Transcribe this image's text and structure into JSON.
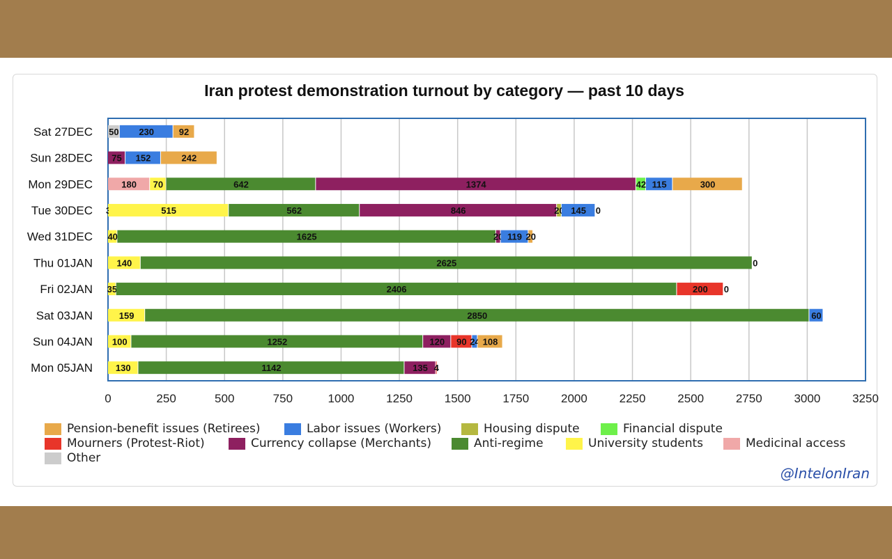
{
  "chart_data": {
    "type": "bar",
    "orientation": "horizontal",
    "stacked": true,
    "title": "Iran protest demonstration turnout by category — past 10 days",
    "xlim": [
      0,
      3250
    ],
    "xticks": [
      0,
      250,
      500,
      750,
      1000,
      1250,
      1500,
      1750,
      2000,
      2250,
      2500,
      2750,
      3000,
      3250
    ],
    "grid": true,
    "legend_position": "bottom",
    "categories_colors": {
      "Pension-benefit issues (Retirees)": "#e8a94a",
      "Labor issues (Workers)": "#3a7de0",
      "Housing dispute": "#b5b840",
      "Financial dispute": "#6ef04a",
      "Mourners (Protest-Riot)": "#e8352a",
      "Currency collapse (Merchants)": "#8e2060",
      "Anti-regime": "#4b8a30",
      "University students": "#fff44a",
      "Medicinal access": "#f0a8a8",
      "Other": "#cccccc"
    },
    "legend": [
      "Pension-benefit issues (Retirees)",
      "Labor issues (Workers)",
      "Housing dispute",
      "Financial dispute",
      "Mourners (Protest-Riot)",
      "Currency collapse (Merchants)",
      "Anti-regime",
      "University students",
      "Medicinal access",
      "Other"
    ],
    "rows": [
      {
        "label": "Sat 27DEC",
        "segments": [
          [
            "Other",
            50
          ],
          [
            "Labor issues (Workers)",
            230
          ],
          [
            "Pension-benefit issues (Retirees)",
            92
          ]
        ]
      },
      {
        "label": "Sun 28DEC",
        "segments": [
          [
            "Currency collapse (Merchants)",
            75
          ],
          [
            "Financial dispute",
            0
          ],
          [
            "Labor issues (Workers)",
            152
          ],
          [
            "Pension-benefit issues (Retirees)",
            242
          ]
        ]
      },
      {
        "label": "Mon 29DEC",
        "segments": [
          [
            "Other",
            0
          ],
          [
            "Medicinal access",
            180
          ],
          [
            "University students",
            70
          ],
          [
            "Anti-regime",
            642
          ],
          [
            "Currency collapse (Merchants)",
            1374
          ],
          [
            "Financial dispute",
            42
          ],
          [
            "Labor issues (Workers)",
            115
          ],
          [
            "Pension-benefit issues (Retirees)",
            300
          ]
        ]
      },
      {
        "label": "Tue 30DEC",
        "segments": [
          [
            "University students",
            3
          ],
          [
            "University students",
            515
          ],
          [
            "Anti-regime",
            562
          ],
          [
            "Currency collapse (Merchants)",
            846
          ],
          [
            "Housing dispute",
            20
          ],
          [
            "Labor issues (Workers)",
            145
          ],
          [
            "Pension-benefit issues (Retirees)",
            0
          ]
        ]
      },
      {
        "label": "Wed 31DEC",
        "segments": [
          [
            "University students",
            40
          ],
          [
            "Anti-regime",
            1625
          ],
          [
            "Currency collapse (Merchants)",
            20
          ],
          [
            "Labor issues (Workers)",
            119
          ],
          [
            "Pension-benefit issues (Retirees)",
            20
          ]
        ]
      },
      {
        "label": "Thu 01JAN",
        "segments": [
          [
            "Other",
            0
          ],
          [
            "University students",
            140
          ],
          [
            "Anti-regime",
            2625
          ],
          [
            "Mourners (Protest-Riot)",
            0
          ]
        ]
      },
      {
        "label": "Fri 02JAN",
        "segments": [
          [
            "University students",
            35
          ],
          [
            "Anti-regime",
            2406
          ],
          [
            "Currency collapse (Merchants)",
            0
          ],
          [
            "Mourners (Protest-Riot)",
            200
          ],
          [
            "Labor issues (Workers)",
            0
          ]
        ]
      },
      {
        "label": "Sat 03JAN",
        "segments": [
          [
            "Other",
            0
          ],
          [
            "University students",
            159
          ],
          [
            "Anti-regime",
            2850
          ],
          [
            "Labor issues (Workers)",
            60
          ]
        ]
      },
      {
        "label": "Sun 04JAN",
        "segments": [
          [
            "University students",
            100
          ],
          [
            "Anti-regime",
            1252
          ],
          [
            "Currency collapse (Merchants)",
            120
          ],
          [
            "Mourners (Protest-Riot)",
            90
          ],
          [
            "Labor issues (Workers)",
            24
          ],
          [
            "Pension-benefit issues (Retirees)",
            108
          ]
        ]
      },
      {
        "label": "Mon 05JAN",
        "segments": [
          [
            "Other",
            0
          ],
          [
            "University students",
            130
          ],
          [
            "Anti-regime",
            1142
          ],
          [
            "Currency collapse (Merchants)",
            135
          ],
          [
            "Mourners (Protest-Riot)",
            4
          ]
        ]
      }
    ]
  },
  "credit": "@IntelonIran"
}
